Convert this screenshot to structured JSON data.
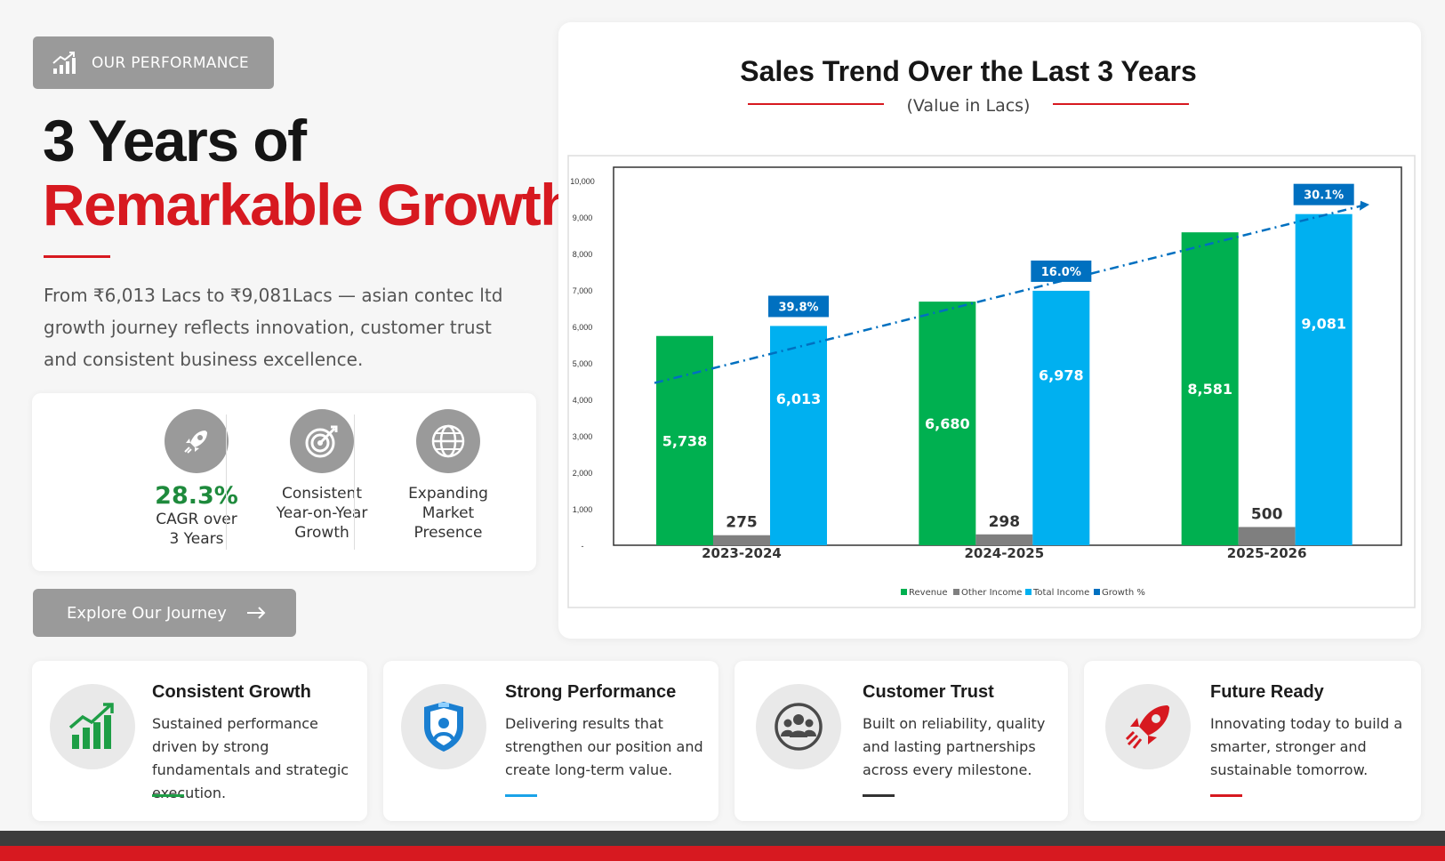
{
  "colors": {
    "accent_red": "#d71920",
    "green": "#1e8a3c",
    "grey": "#9a9a9a",
    "revenue": "#00b050",
    "other_income": "#7f7f7f",
    "total_income": "#00b0f0",
    "growth": "#0070c0"
  },
  "badge": {
    "label": "OUR PERFORMANCE",
    "icon": "growth-bar-chart-icon"
  },
  "hero": {
    "line1": "3 Years of",
    "line2": "Remarkable Growth",
    "intro": "From ₹6,013 Lacs to ₹9,081Lacs — asian contec ltd growth journey reflects innovation, customer trust and consistent business excellence."
  },
  "stats": [
    {
      "icon": "rocket-icon",
      "big": "28.3%",
      "line1": "CAGR over",
      "line2": "3 Years"
    },
    {
      "icon": "target-icon",
      "line1": "Consistent",
      "line2": "Year-on-Year",
      "line3": "Growth"
    },
    {
      "icon": "globe-icon",
      "line1": "Expanding",
      "line2": "Market",
      "line3": "Presence"
    }
  ],
  "cta": {
    "label": "Explore Our Journey",
    "icon": "arrow-right-icon"
  },
  "chart_data": {
    "type": "bar",
    "title": "Sales Trend Over the Last 3 Years",
    "subtitle": "(Value in Lacs)",
    "categories": [
      "2023-2024",
      "2024-2025",
      "2025-2026"
    ],
    "series": [
      {
        "name": "Revenue",
        "color": "#00b050",
        "values": [
          5738,
          6680,
          8581
        ]
      },
      {
        "name": "Other Income",
        "color": "#7f7f7f",
        "values": [
          275,
          298,
          500
        ]
      },
      {
        "name": "Total Income",
        "color": "#00b0f0",
        "values": [
          6013,
          6978,
          9081
        ]
      }
    ],
    "data_labels": {
      "Revenue": [
        "5,738",
        "6,680",
        "8,581"
      ],
      "Other Income": [
        "275",
        "298",
        "500"
      ],
      "Total Income": [
        "6,013",
        "6,978",
        "9,081"
      ]
    },
    "growth": {
      "name": "Growth %",
      "color": "#0070c0",
      "labels": [
        "39.8%",
        "16.0%",
        "30.1%"
      ]
    },
    "ylim": [
      0,
      10000
    ],
    "y_ticks": [
      "-",
      "1,000",
      "2,000",
      "3,000",
      "4,000",
      "5,000",
      "6,000",
      "7,000",
      "8,000",
      "9,000",
      "10,000"
    ],
    "legend": [
      "Revenue",
      "Other Income",
      "Total Income",
      "Growth %"
    ],
    "legend_position": "bottom",
    "grid": false
  },
  "features": [
    {
      "icon": "growth-chart-icon",
      "title": "Consistent Growth",
      "desc": "Sustained performance driven by strong fundamentals and strategic execution.",
      "accent": "#1e9e46"
    },
    {
      "icon": "shield-icon",
      "title": "Strong Performance",
      "desc": "Delivering results that strengthen our position and create long-term value.",
      "accent": "#1aa3e8"
    },
    {
      "icon": "group-icon",
      "title": "Customer Trust",
      "desc": "Built on reliability, quality and lasting partnerships across every milestone.",
      "accent": "#333333"
    },
    {
      "icon": "rocket-icon",
      "title": "Future Ready",
      "desc": "Innovating today to build a smarter, stronger and sustainable tomorrow.",
      "accent": "#d71920"
    }
  ]
}
